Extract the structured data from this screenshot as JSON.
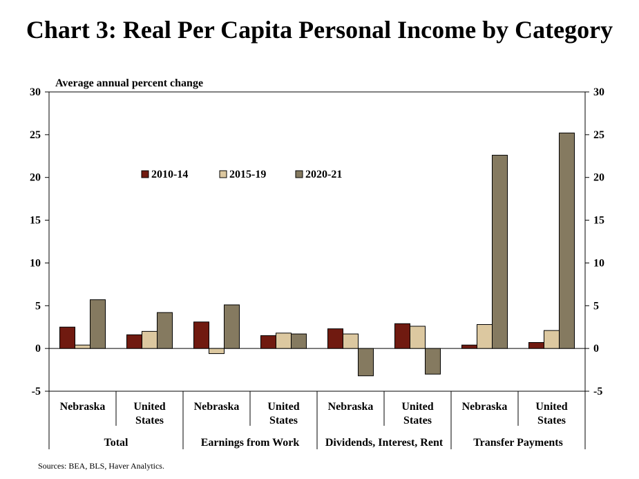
{
  "title": "Chart 3: Real Per Capita Personal Income by Category",
  "source": "Sources: BEA, BLS, Haver Analytics.",
  "chart_data": {
    "type": "bar",
    "title": "Chart 3: Real Per Capita Personal Income by Category",
    "ylabel": "Average annual percent change",
    "xlabel": "",
    "ylim": [
      -5,
      30
    ],
    "yticks": [
      -5,
      0,
      5,
      10,
      15,
      20,
      25,
      30
    ],
    "secondary_y_axis": true,
    "grid": false,
    "legend_position": "top-center",
    "groups": [
      "Total",
      "Earnings from Work",
      "Dividends, Interest, Rent",
      "Transfer Payments"
    ],
    "categories": [
      "Nebraska",
      "United States",
      "Nebraska",
      "United States",
      "Nebraska",
      "United States",
      "Nebraska",
      "United States"
    ],
    "category_lines": [
      [
        "Nebraska"
      ],
      [
        "United",
        "States"
      ],
      [
        "Nebraska"
      ],
      [
        "United",
        "States"
      ],
      [
        "Nebraska"
      ],
      [
        "United",
        "States"
      ],
      [
        "Nebraska"
      ],
      [
        "United",
        "States"
      ]
    ],
    "series": [
      {
        "name": "2010-14",
        "color": "#701A10",
        "values": [
          2.5,
          1.6,
          3.1,
          1.5,
          2.3,
          2.9,
          0.4,
          0.7
        ]
      },
      {
        "name": "2015-19",
        "color": "#DCC8A0",
        "values": [
          0.4,
          2.0,
          -0.6,
          1.8,
          1.7,
          2.6,
          2.8,
          2.1
        ]
      },
      {
        "name": "2020-21",
        "color": "#857A60",
        "values": [
          5.7,
          4.2,
          5.1,
          1.7,
          -3.2,
          -3.0,
          22.6,
          25.2
        ]
      }
    ]
  }
}
